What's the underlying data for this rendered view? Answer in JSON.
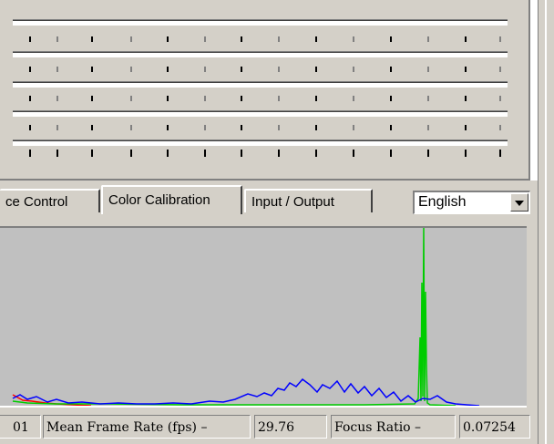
{
  "tabs": [
    {
      "label": "ce Control"
    },
    {
      "label": "Color Calibration"
    },
    {
      "label": "Input / Output"
    }
  ],
  "language_select": {
    "value": "English"
  },
  "status": {
    "prev_value": "01",
    "mean_frame_rate_label": "Mean Frame Rate (fps) –",
    "mean_frame_rate_value": "29.76",
    "focus_ratio_label": "Focus Ratio –",
    "focus_ratio_value": "0.07254"
  },
  "colors": {
    "panel": "#d4d0c8",
    "plot_background": "#c0c0c0",
    "series_blue": "#0000ff",
    "series_green": "#00cc00",
    "series_red": "#ff0000"
  }
}
